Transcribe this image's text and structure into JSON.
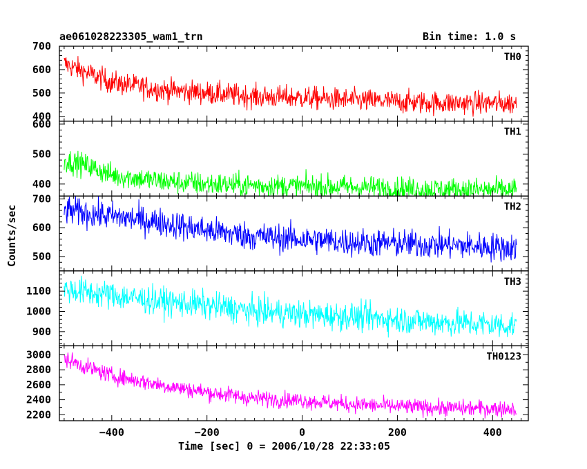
{
  "header": {
    "title": "ae061028223305_wam1_trn",
    "bin_time": "Bin time: 1.0 s"
  },
  "chart_data": {
    "type": "line",
    "xlabel": "Time [sec] 0 = 2006/10/28 22:33:05",
    "ylabel": "Counts/sec",
    "xlim": [
      -510,
      475
    ],
    "x_ticks": [
      -400,
      -200,
      0,
      200,
      400
    ],
    "x_range": [
      -500,
      450
    ],
    "bin_time_s": 1.0,
    "panels": [
      {
        "name": "TH0",
        "color": "#ff0000",
        "ylim": [
          380,
          700
        ],
        "y_ticks": [
          400,
          500,
          600,
          700
        ],
        "trend_x": [
          -500,
          -450,
          -400,
          -300,
          -200,
          -100,
          0,
          100,
          200,
          300,
          450
        ],
        "trend_y": [
          625,
          585,
          545,
          515,
          500,
          485,
          480,
          470,
          462,
          458,
          455
        ],
        "scatter": 25
      },
      {
        "name": "TH1",
        "color": "#00ff00",
        "ylim": [
          360,
          610
        ],
        "y_ticks": [
          400,
          500,
          600
        ],
        "trend_x": [
          -500,
          -450,
          -400,
          -300,
          -200,
          -100,
          0,
          100,
          200,
          300,
          450
        ],
        "trend_y": [
          480,
          460,
          430,
          410,
          400,
          395,
          392,
          390,
          385,
          382,
          380
        ],
        "scatter": 20
      },
      {
        "name": "TH2",
        "color": "#0000ff",
        "ylim": [
          450,
          710
        ],
        "y_ticks": [
          500,
          600,
          700
        ],
        "trend_x": [
          -500,
          -400,
          -300,
          -200,
          -100,
          0,
          100,
          200,
          300,
          450
        ],
        "trend_y": [
          660,
          640,
          620,
          590,
          570,
          560,
          550,
          545,
          540,
          530
        ],
        "scatter": 25
      },
      {
        "name": "TH3",
        "color": "#00ffff",
        "ylim": [
          830,
          1200
        ],
        "y_ticks": [
          900,
          1000,
          1100
        ],
        "trend_x": [
          -500,
          -400,
          -300,
          -200,
          -100,
          0,
          100,
          200,
          300,
          450
        ],
        "trend_y": [
          1110,
          1080,
          1050,
          1030,
          1000,
          985,
          975,
          960,
          945,
          930
        ],
        "scatter": 35
      },
      {
        "name": "TH0123",
        "color": "#ff00ff",
        "ylim": [
          2120,
          3120
        ],
        "y_ticks": [
          2200,
          2400,
          2600,
          2800,
          3000
        ],
        "trend_x": [
          -500,
          -450,
          -400,
          -300,
          -200,
          -100,
          0,
          100,
          200,
          300,
          450
        ],
        "trend_y": [
          2950,
          2830,
          2720,
          2600,
          2500,
          2420,
          2390,
          2340,
          2310,
          2290,
          2280
        ],
        "scatter": 55
      }
    ]
  }
}
